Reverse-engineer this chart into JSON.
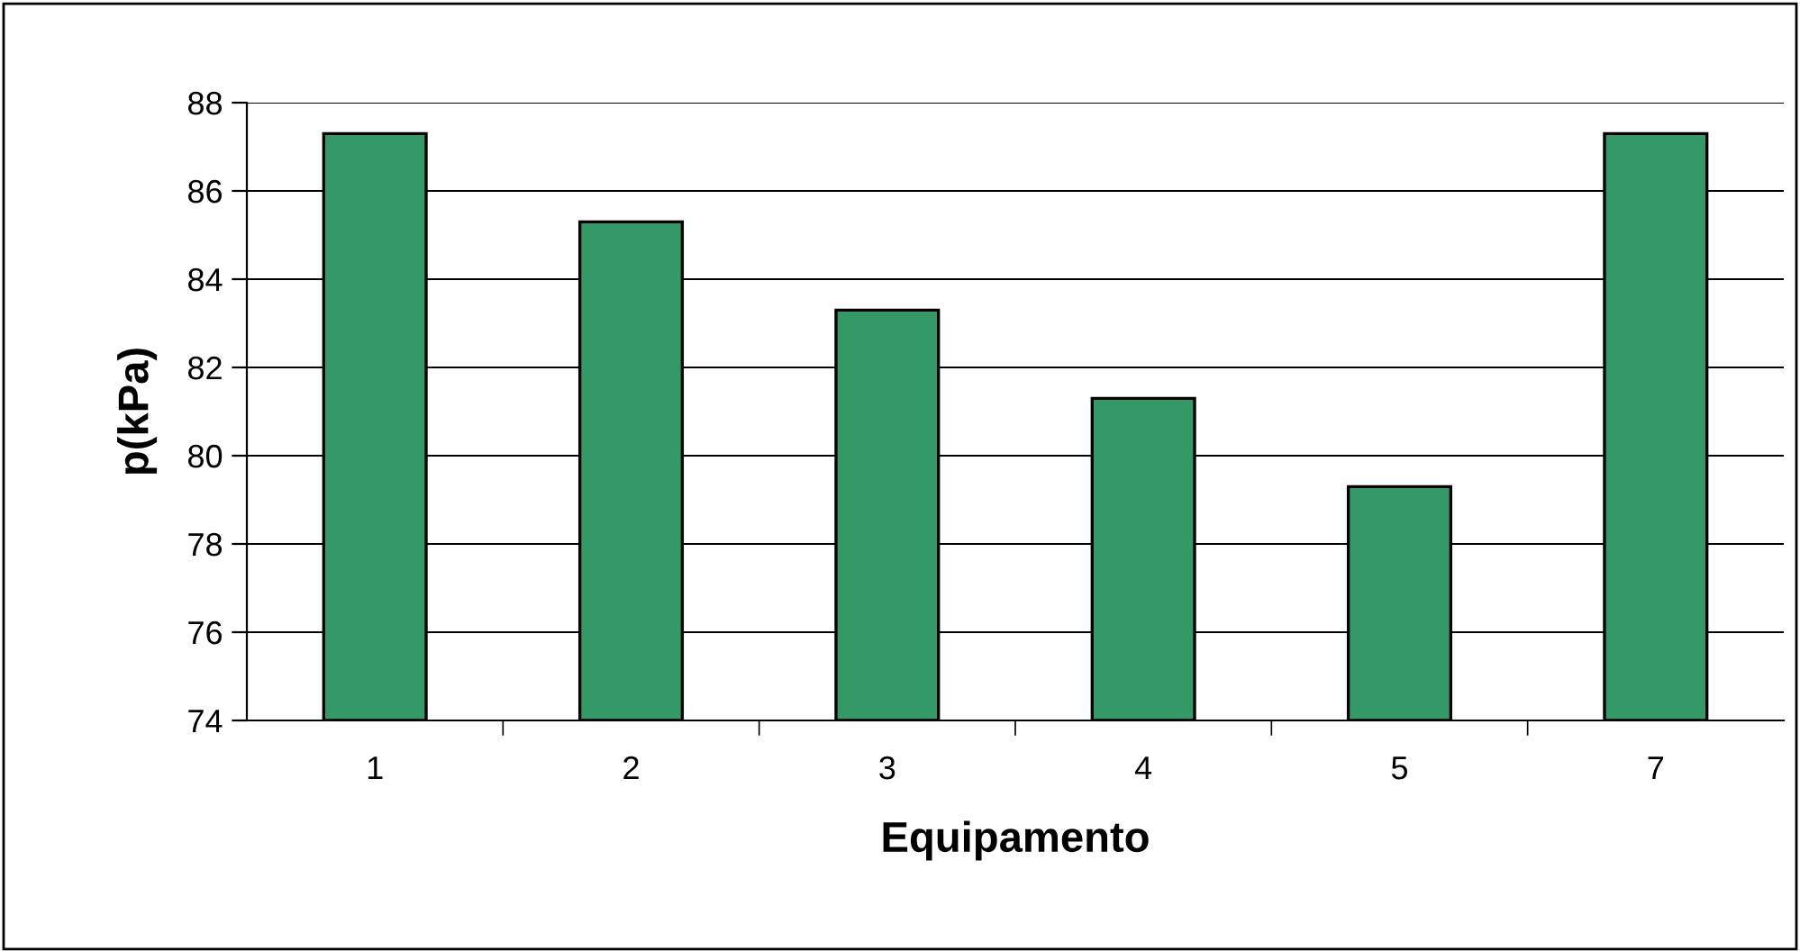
{
  "chart_data": {
    "type": "bar",
    "xlabel": "Equipamento",
    "ylabel": "p(kPa)",
    "categories": [
      "1",
      "2",
      "3",
      "4",
      "5",
      "7"
    ],
    "values": [
      87.3,
      85.3,
      83.3,
      81.3,
      79.3,
      87.3
    ],
    "color": "#339966",
    "ylim": [
      74,
      88
    ],
    "yticks": [
      74,
      76,
      78,
      80,
      82,
      84,
      86,
      88
    ],
    "grid": "y",
    "legend": false
  }
}
